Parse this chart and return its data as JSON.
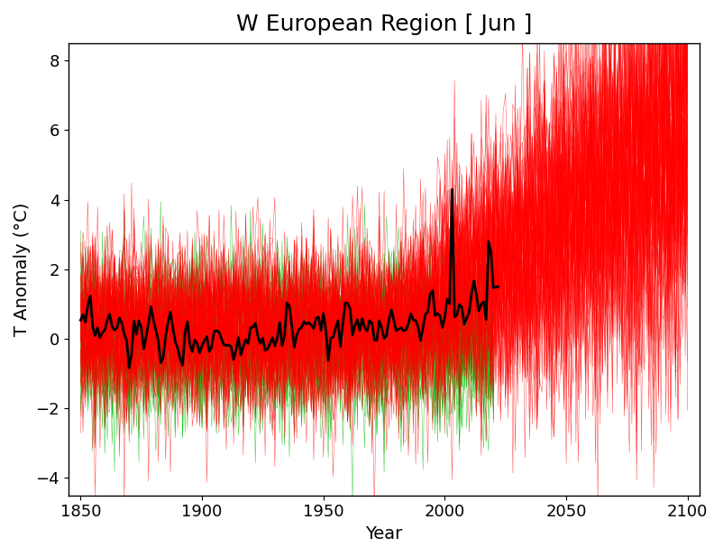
{
  "title": "W European Region [ Jun ]",
  "xlabel": "Year",
  "ylabel": "T Anomaly (°C)",
  "xlim": [
    1845,
    2105
  ],
  "ylim": [
    -4.5,
    8.5
  ],
  "yticks": [
    -4,
    -2,
    0,
    2,
    4,
    6,
    8
  ],
  "xticks": [
    1850,
    1900,
    1950,
    2000,
    2050,
    2100
  ],
  "obs_start": 1850,
  "obs_end": 2022,
  "all_start": 1850,
  "all_end": 2100,
  "nat_start": 1850,
  "nat_end": 2020,
  "n_all_members": 60,
  "n_nat_members": 30,
  "obs_color": "#000000",
  "all_color": "#ff0000",
  "nat_color": "#00bb00",
  "title_fontsize": 18,
  "label_fontsize": 14,
  "tick_fontsize": 13,
  "obs_linewidth": 2.0,
  "sim_linewidth": 0.35,
  "background_color": "#ffffff"
}
